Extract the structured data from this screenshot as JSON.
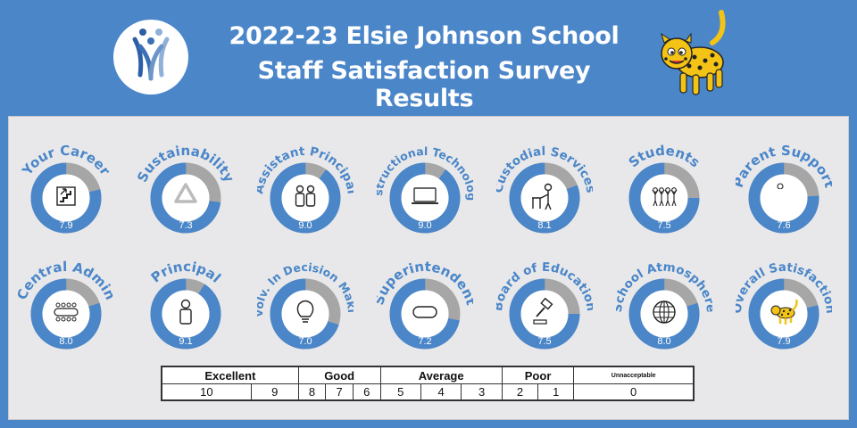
{
  "header": {
    "title_line1": "2022-23 Elsie Johnson School",
    "title_line2": "Staff Satisfaction Survey Results"
  },
  "colors": {
    "header_bg": "#4a86c8",
    "panel_bg": "#e8e8ea",
    "gauge_fill": "#4a86c8",
    "gauge_remainder": "#a6a6a6",
    "label_color": "#4a86c8"
  },
  "gauges": [
    {
      "label": "Your Career",
      "score": "7.9",
      "value": 7.9,
      "icon": "stairs-icon"
    },
    {
      "label": "Sustainability",
      "score": "7.3",
      "value": 7.3,
      "icon": "recycle-icon"
    },
    {
      "label": "Assistant Principal",
      "score": "9.0",
      "value": 9.0,
      "icon": "two-people-icon"
    },
    {
      "label": "Instructional Technology",
      "score": "9.0",
      "value": 9.0,
      "icon": "laptop-icon"
    },
    {
      "label": "Custodial Services",
      "score": "8.1",
      "value": 8.1,
      "icon": "custodian-icon"
    },
    {
      "label": "Students",
      "score": "7.5",
      "value": 7.5,
      "icon": "students-icon"
    },
    {
      "label": "Parent Support",
      "score": "7.6",
      "value": 7.6,
      "icon": "parent-child-icon"
    },
    {
      "label": "Central Admin",
      "score": "8.0",
      "value": 8.0,
      "icon": "meeting-table-icon"
    },
    {
      "label": "Principal",
      "score": "9.1",
      "value": 9.1,
      "icon": "person-icon"
    },
    {
      "label": "Involv. In Decision Making",
      "score": "7.0",
      "value": 7.0,
      "icon": "lightbulb-icon"
    },
    {
      "label": "Superintendent",
      "score": "7.2",
      "value": 7.2,
      "icon": "pill-icon"
    },
    {
      "label": "Board of Education",
      "score": "7.5",
      "value": 7.5,
      "icon": "gavel-icon"
    },
    {
      "label": "School Atmosphere",
      "score": "8.0",
      "value": 8.0,
      "icon": "globe-icon"
    },
    {
      "label": "Overall Satisfaction",
      "score": "7.9",
      "value": 7.9,
      "icon": "leopard-icon"
    }
  ],
  "scale": {
    "categories": [
      "Excellent",
      "Good",
      "Average",
      "Poor",
      "Unnacceptable"
    ],
    "numbers": [
      "10",
      "9",
      "8",
      "7",
      "6",
      "5",
      "4",
      "3",
      "2",
      "1",
      "0"
    ]
  }
}
